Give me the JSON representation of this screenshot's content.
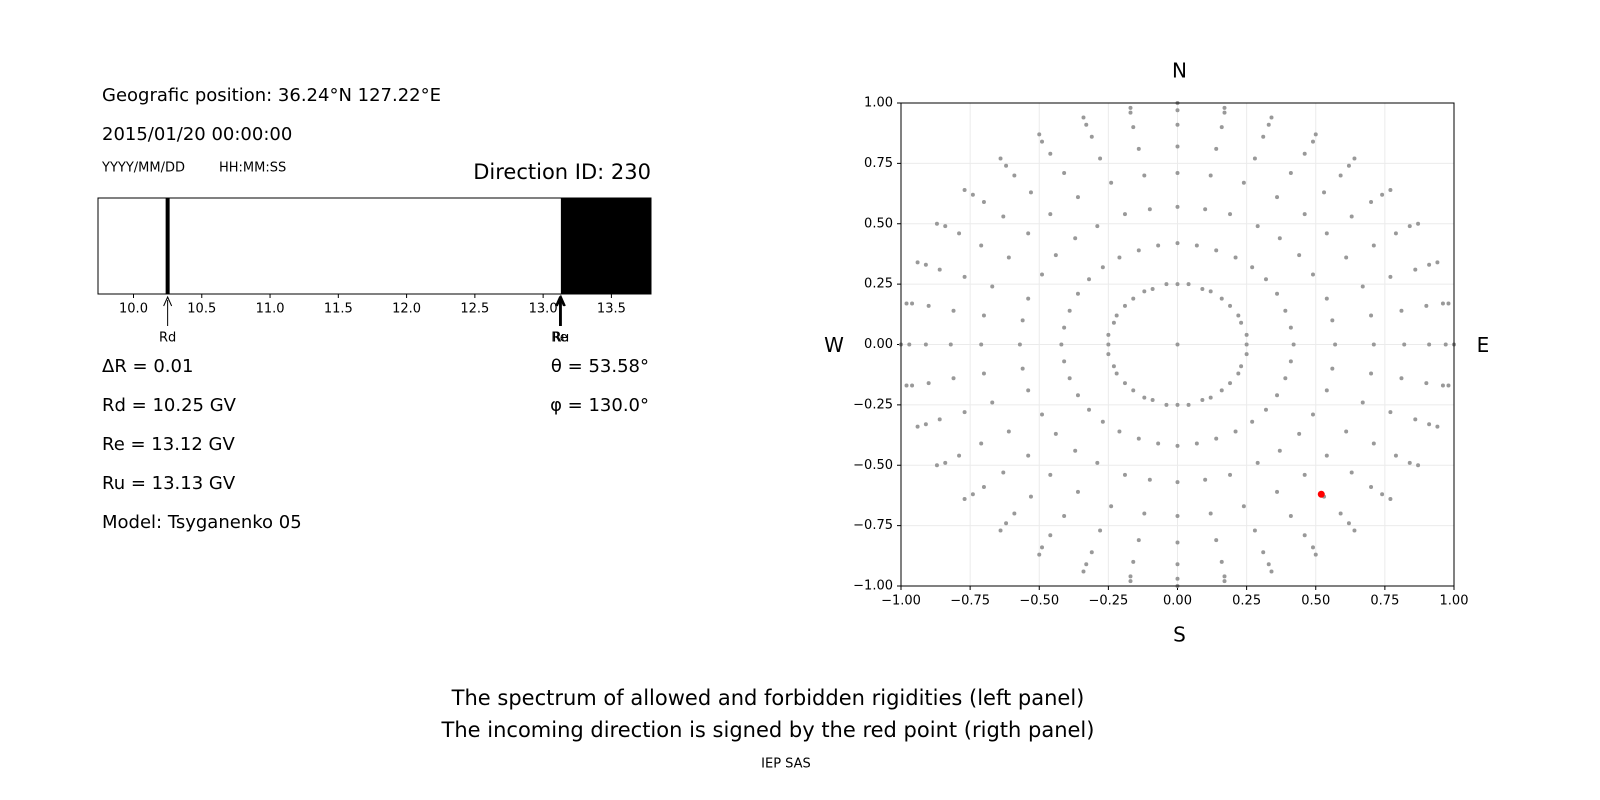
{
  "info": {
    "position": "Geografic position: 36.24°N 127.22°E",
    "datetime": "2015/01/20 00:00:00",
    "date_format": "YYYY/MM/DD",
    "time_format": "HH:MM:SS",
    "direction": "Direction ID: 230",
    "delta_r": "ΔR = 0.01",
    "theta": "θ = 53.58°",
    "phi": "φ = 130.0°",
    "rd": "Rd = 10.25 GV",
    "re": "Re = 13.12 GV",
    "ru": "Ru = 13.13 GV",
    "model": "Model: Tsyganenko 05"
  },
  "chart_data": [
    {
      "type": "spectrum",
      "xlim": [
        9.74,
        13.79
      ],
      "xticks": [
        {
          "value": 10,
          "label": "10.0"
        },
        {
          "value": 10.5,
          "label": "10.5"
        },
        {
          "value": 11,
          "label": "11.0"
        },
        {
          "value": 11.5,
          "label": "11.5"
        },
        {
          "value": 12,
          "label": "12.0"
        },
        {
          "value": 12.5,
          "label": "12.5"
        },
        {
          "value": 13,
          "label": "13.0"
        },
        {
          "value": 13.5,
          "label": "13.5"
        }
      ],
      "markers": [
        {
          "label": "Rd",
          "value": 10.25
        },
        {
          "label": "Re",
          "value": 13.12
        },
        {
          "label": "Ru",
          "value": 13.13
        }
      ],
      "color": "#000000"
    },
    {
      "type": "scatter",
      "xlim": [
        -1,
        1
      ],
      "ylim": [
        -1,
        1
      ],
      "grid": true,
      "xticks": [
        {
          "value": -1,
          "label": "−1.00"
        },
        {
          "value": -0.75,
          "label": "−0.75"
        },
        {
          "value": -0.5,
          "label": "−0.50"
        },
        {
          "value": -0.25,
          "label": "−0.25"
        },
        {
          "value": 0,
          "label": "0.00"
        },
        {
          "value": 0.25,
          "label": "0.25"
        },
        {
          "value": 0.5,
          "label": "0.50"
        },
        {
          "value": 0.75,
          "label": "0.75"
        },
        {
          "value": 1,
          "label": "1.00"
        }
      ],
      "yticks": [
        {
          "value": -1,
          "label": "−1.00"
        },
        {
          "value": -0.75,
          "label": "−0.75"
        },
        {
          "value": -0.5,
          "label": "−0.50"
        },
        {
          "value": -0.25,
          "label": "−0.25"
        },
        {
          "value": 0,
          "label": "0.00"
        },
        {
          "value": 0.25,
          "label": "0.25"
        },
        {
          "value": 0.5,
          "label": "0.50"
        },
        {
          "value": 0.75,
          "label": "0.75"
        },
        {
          "value": 1,
          "label": "1.00"
        }
      ],
      "compass_labels": {
        "top": "N",
        "bottom": "S",
        "left": "W",
        "right": "E"
      },
      "series": [
        {
          "color": "#999999",
          "x": [
            0.25,
            0.25,
            0.23,
            0.22,
            0.19,
            0.16,
            0.12,
            0.09,
            0.04,
            0,
            -0.04,
            -0.09,
            -0.12,
            -0.16,
            -0.19,
            -0.22,
            -0.23,
            -0.25,
            -0.25,
            -0.25,
            -0.23,
            -0.22,
            -0.19,
            -0.16,
            -0.12,
            -0.09,
            -0.04,
            0,
            0.04,
            0.09,
            0.12,
            0.16,
            0.19,
            0.22,
            0.23,
            0.25,
            0.42,
            0.41,
            0.39,
            0.36,
            0.32,
            0.27,
            0.21,
            0.14,
            0.07,
            0,
            -0.07,
            -0.14,
            -0.21,
            -0.27,
            -0.32,
            -0.36,
            -0.39,
            -0.41,
            -0.42,
            -0.41,
            -0.39,
            -0.36,
            -0.32,
            -0.27,
            -0.21,
            -0.14,
            -0.07,
            0,
            0.07,
            0.14,
            0.21,
            0.27,
            0.32,
            0.36,
            0.39,
            0.41,
            0.57,
            0.56,
            0.54,
            0.49,
            0.44,
            0.37,
            0.29,
            0.19,
            0.1,
            0,
            -0.1,
            -0.19,
            -0.29,
            -0.37,
            -0.44,
            -0.49,
            -0.54,
            -0.56,
            -0.57,
            -0.56,
            -0.54,
            -0.49,
            -0.44,
            -0.37,
            -0.29,
            -0.19,
            -0.1,
            0,
            0.1,
            0.19,
            0.29,
            0.37,
            0.44,
            0.49,
            0.54,
            0.56,
            0.71,
            0.7,
            0.67,
            0.61,
            0.54,
            0.46,
            0.36,
            0.24,
            0.12,
            0,
            -0.12,
            -0.24,
            -0.36,
            -0.46,
            -0.54,
            -0.61,
            -0.67,
            -0.7,
            -0.71,
            -0.7,
            -0.67,
            -0.61,
            -0.54,
            -0.46,
            -0.36,
            -0.24,
            -0.12,
            0,
            0.12,
            0.24,
            0.36,
            0.46,
            0.54,
            0.61,
            0.67,
            0.7,
            0.82,
            0.81,
            0.77,
            0.71,
            0.63,
            0.53,
            0.41,
            0.28,
            0.14,
            0,
            -0.14,
            -0.28,
            -0.41,
            -0.53,
            -0.63,
            -0.71,
            -0.77,
            -0.81,
            -0.82,
            -0.81,
            -0.77,
            -0.71,
            -0.63,
            -0.53,
            -0.41,
            -0.28,
            -0.14,
            0,
            0.14,
            0.28,
            0.41,
            0.53,
            0.63,
            0.71,
            0.77,
            0.81,
            0.91,
            0.9,
            0.86,
            0.79,
            0.7,
            0.59,
            0.46,
            0.31,
            0.16,
            0,
            -0.16,
            -0.31,
            -0.46,
            -0.59,
            -0.7,
            -0.79,
            -0.86,
            -0.9,
            -0.91,
            -0.9,
            -0.86,
            -0.79,
            -0.7,
            -0.59,
            -0.46,
            -0.31,
            -0.16,
            0,
            0.16,
            0.31,
            0.46,
            0.59,
            0.7,
            0.79,
            0.86,
            0.9,
            0.97,
            0.96,
            0.91,
            0.84,
            0.74,
            0.62,
            0.49,
            0.33,
            0.17,
            0,
            -0.17,
            -0.33,
            -0.49,
            -0.62,
            -0.74,
            -0.84,
            -0.91,
            -0.96,
            -0.97,
            -0.96,
            -0.91,
            -0.84,
            -0.74,
            -0.62,
            -0.49,
            -0.33,
            -0.17,
            0,
            0.17,
            0.33,
            0.49,
            0.62,
            0.74,
            0.84,
            0.91,
            0.96,
            1,
            0.98,
            0.94,
            0.87,
            0.77,
            0.64,
            0.5,
            0.34,
            0.17,
            0,
            -0.17,
            -0.34,
            -0.5,
            -0.64,
            -0.77,
            -0.87,
            -0.94,
            -0.98,
            -1,
            -0.98,
            -0.94,
            -0.87,
            -0.77,
            -0.64,
            -0.5,
            -0.34,
            -0.17,
            0,
            0.17,
            0.34,
            0.5,
            0.64,
            0.77,
            0.87,
            0.94,
            0.98,
            0
          ],
          "values": [
            0,
            0.04,
            0.09,
            0.12,
            0.16,
            0.19,
            0.22,
            0.23,
            0.25,
            0.25,
            0.25,
            0.23,
            0.22,
            0.19,
            0.16,
            0.12,
            0.09,
            0.04,
            0,
            -0.04,
            -0.09,
            -0.12,
            -0.16,
            -0.19,
            -0.22,
            -0.23,
            -0.25,
            -0.25,
            -0.25,
            -0.23,
            -0.22,
            -0.19,
            -0.16,
            -0.12,
            -0.09,
            -0.04,
            0,
            0.07,
            0.14,
            0.21,
            0.27,
            0.32,
            0.36,
            0.39,
            0.41,
            0.42,
            0.41,
            0.39,
            0.36,
            0.32,
            0.27,
            0.21,
            0.14,
            0.07,
            0,
            -0.07,
            -0.14,
            -0.21,
            -0.27,
            -0.32,
            -0.36,
            -0.39,
            -0.41,
            -0.42,
            -0.41,
            -0.39,
            -0.36,
            -0.32,
            -0.27,
            -0.21,
            -0.14,
            -0.07,
            0,
            0.1,
            0.19,
            0.29,
            0.37,
            0.44,
            0.49,
            0.54,
            0.56,
            0.57,
            0.56,
            0.54,
            0.49,
            0.44,
            0.37,
            0.29,
            0.19,
            0.1,
            0,
            -0.1,
            -0.19,
            -0.29,
            -0.37,
            -0.44,
            -0.49,
            -0.54,
            -0.56,
            -0.57,
            -0.56,
            -0.54,
            -0.49,
            -0.44,
            -0.37,
            -0.29,
            -0.19,
            -0.1,
            0,
            0.12,
            0.24,
            0.36,
            0.46,
            0.54,
            0.61,
            0.67,
            0.7,
            0.71,
            0.7,
            0.67,
            0.61,
            0.54,
            0.46,
            0.36,
            0.24,
            0.12,
            0,
            -0.12,
            -0.24,
            -0.36,
            -0.46,
            -0.54,
            -0.61,
            -0.67,
            -0.7,
            -0.71,
            -0.7,
            -0.67,
            -0.61,
            -0.54,
            -0.46,
            -0.36,
            -0.24,
            -0.12,
            0,
            0.14,
            0.28,
            0.41,
            0.53,
            0.63,
            0.71,
            0.77,
            0.81,
            0.82,
            0.81,
            0.77,
            0.71,
            0.63,
            0.53,
            0.41,
            0.28,
            0.14,
            0,
            -0.14,
            -0.28,
            -0.41,
            -0.53,
            -0.63,
            -0.71,
            -0.77,
            -0.81,
            -0.82,
            -0.81,
            -0.77,
            -0.71,
            -0.63,
            -0.53,
            -0.41,
            -0.28,
            -0.14,
            0,
            0.16,
            0.31,
            0.46,
            0.59,
            0.7,
            0.79,
            0.86,
            0.9,
            0.91,
            0.9,
            0.86,
            0.79,
            0.7,
            0.59,
            0.46,
            0.31,
            0.16,
            0,
            -0.16,
            -0.31,
            -0.46,
            -0.59,
            -0.7,
            -0.79,
            -0.86,
            -0.9,
            -0.91,
            -0.9,
            -0.86,
            -0.79,
            -0.7,
            -0.59,
            -0.46,
            -0.31,
            -0.16,
            0,
            0.17,
            0.33,
            0.49,
            0.62,
            0.74,
            0.84,
            0.91,
            0.96,
            0.97,
            0.96,
            0.91,
            0.84,
            0.74,
            0.62,
            0.49,
            0.33,
            0.17,
            0,
            -0.17,
            -0.33,
            -0.49,
            -0.62,
            -0.74,
            -0.84,
            -0.91,
            -0.96,
            -0.97,
            -0.96,
            -0.91,
            -0.84,
            -0.74,
            -0.62,
            -0.49,
            -0.33,
            -0.17,
            0,
            0.17,
            0.34,
            0.5,
            0.64,
            0.77,
            0.87,
            0.94,
            0.98,
            1,
            0.98,
            0.94,
            0.87,
            0.77,
            0.64,
            0.5,
            0.34,
            0.17,
            0,
            -0.17,
            -0.34,
            -0.5,
            -0.64,
            -0.77,
            -0.87,
            -0.94,
            -0.98,
            -1,
            -0.98,
            -0.94,
            -0.87,
            -0.77,
            -0.64,
            -0.5,
            -0.34,
            -0.17,
            0
          ]
        },
        {
          "color": "#ff0000",
          "x": [
            0.52
          ],
          "values": [
            -0.62
          ]
        }
      ]
    }
  ],
  "caption": [
    "The spectrum of allowed and forbidden rigidities (left panel)",
    "The incoming direction is signed by the red point (rigth panel)"
  ],
  "footer": "IEP SAS"
}
